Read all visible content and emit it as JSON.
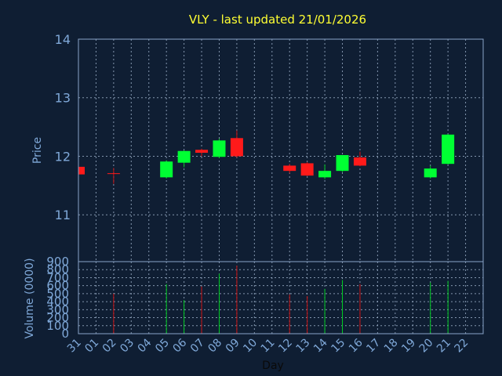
{
  "colors": {
    "background": "#0f1e33",
    "plot_background": "#0f1e33",
    "frame": "#8aa4c8",
    "grid": "#9fb3cc",
    "title": "#ffff33",
    "axis_text": "#7fa8d8",
    "xlabel_text": "#0a0a0a",
    "up": "#00ff33",
    "down": "#ff1a1a",
    "up_line": "#00cc22",
    "down_line": "#cc1111"
  },
  "chart_data": {
    "type": "candlestick",
    "title": "VLY - last updated 21/01/2026",
    "xlabel": "Day",
    "price_panel": {
      "ylabel": "Price",
      "ylim": [
        10.2,
        14.0
      ],
      "yticks": [
        11,
        12,
        13,
        14
      ],
      "grid": true
    },
    "volume_panel": {
      "ylabel": "Volume (0000)",
      "ylim": [
        0,
        900
      ],
      "yticks": [
        0,
        100,
        200,
        300,
        400,
        500,
        600,
        700,
        800,
        900
      ],
      "grid": true
    },
    "x_ticks": [
      "31",
      "01",
      "02",
      "03",
      "04",
      "05",
      "06",
      "07",
      "08",
      "09",
      "10",
      "11",
      "12",
      "13",
      "14",
      "15",
      "16",
      "17",
      "18",
      "19",
      "20",
      "21",
      "22"
    ],
    "candles": [
      {
        "day": "31",
        "open": 11.82,
        "high": 11.83,
        "low": 11.68,
        "close": 11.69,
        "volume": 0
      },
      {
        "day": "02",
        "open": 11.71,
        "high": 11.8,
        "low": 11.53,
        "close": 11.7,
        "volume": 500
      },
      {
        "day": "05",
        "open": 11.64,
        "high": 11.93,
        "low": 11.62,
        "close": 11.91,
        "volume": 620
      },
      {
        "day": "06",
        "open": 11.89,
        "high": 12.1,
        "low": 11.81,
        "close": 12.09,
        "volume": 420
      },
      {
        "day": "07",
        "open": 12.11,
        "high": 12.13,
        "low": 12.0,
        "close": 12.06,
        "volume": 590
      },
      {
        "day": "08",
        "open": 11.99,
        "high": 12.3,
        "low": 11.97,
        "close": 12.27,
        "volume": 750
      },
      {
        "day": "09",
        "open": 12.31,
        "high": 12.44,
        "low": 11.98,
        "close": 12.0,
        "volume": 850
      },
      {
        "day": "12",
        "open": 11.84,
        "high": 11.87,
        "low": 11.71,
        "close": 11.75,
        "volume": 490
      },
      {
        "day": "13",
        "open": 11.88,
        "high": 11.9,
        "low": 11.66,
        "close": 11.67,
        "volume": 470
      },
      {
        "day": "14",
        "open": 11.64,
        "high": 11.86,
        "low": 11.61,
        "close": 11.75,
        "volume": 560
      },
      {
        "day": "15",
        "open": 11.75,
        "high": 12.02,
        "low": 11.73,
        "close": 12.02,
        "volume": 670
      },
      {
        "day": "16",
        "open": 11.98,
        "high": 12.08,
        "low": 11.83,
        "close": 11.84,
        "volume": 620
      },
      {
        "day": "20",
        "open": 11.64,
        "high": 11.84,
        "low": 11.62,
        "close": 11.79,
        "volume": 640
      },
      {
        "day": "21",
        "open": 11.87,
        "high": 12.38,
        "low": 11.86,
        "close": 12.37,
        "volume": 660
      }
    ]
  }
}
